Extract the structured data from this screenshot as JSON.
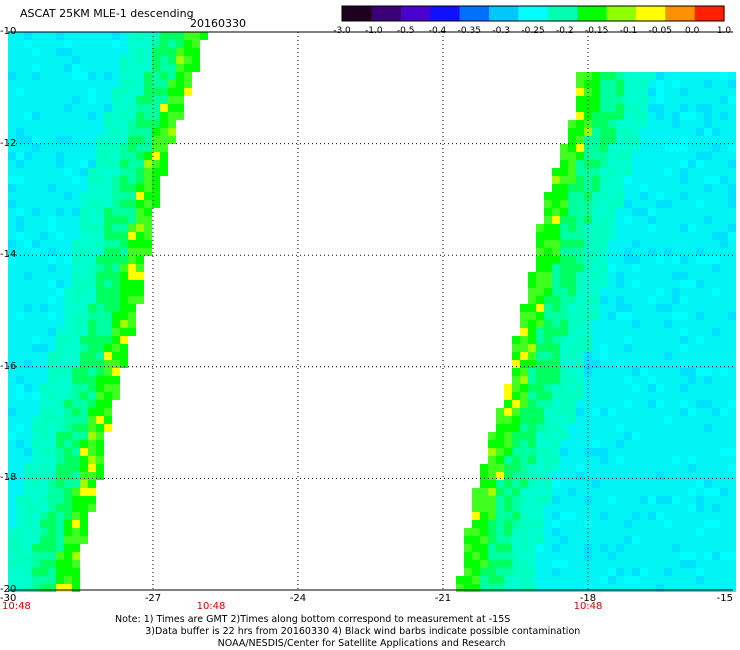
{
  "title": "ASCAT 25KM MLE-1 descending",
  "date": "20160330",
  "colorbar": {
    "labels": [
      "-3.0",
      "-1.0",
      "-0.5",
      "-0.4",
      "-0.35",
      "-0.3",
      "-0.25",
      "-0.2",
      "-0.15",
      "-0.1",
      "-0.05",
      "0.0",
      "1.0"
    ],
    "colors": [
      "#200020",
      "#3a0078",
      "#4a00d0",
      "#1010ff",
      "#0070ff",
      "#00c8ff",
      "#00ffff",
      "#00ffb0",
      "#00ff00",
      "#90ff00",
      "#ffff00",
      "#ff9000",
      "#ff2000"
    ]
  },
  "chart_data": {
    "type": "heatmap",
    "title": "ASCAT 25KM MLE-1 descending",
    "subtitle": "20160330",
    "x_axis": {
      "range": [
        -30,
        -15
      ],
      "ticks": [
        "-30",
        "-27",
        "-24",
        "-21",
        "-18",
        "-15"
      ]
    },
    "y_axis": {
      "range": [
        -20,
        -10
      ],
      "ticks": [
        "-10",
        "-12",
        "-14",
        "-16",
        "-18",
        "-20"
      ]
    },
    "grid": "dotted",
    "time_labels": [
      {
        "x": -30,
        "text": "10:48"
      },
      {
        "x": -25.8,
        "text": "10:48"
      },
      {
        "x": -18,
        "text": "10:48"
      }
    ],
    "swaths": [
      {
        "name": "west",
        "inner_edge": [
          [
            -10,
            -25.9
          ],
          [
            -11,
            -26.2
          ],
          [
            -12,
            -26.6
          ],
          [
            -13,
            -26.9
          ],
          [
            -14,
            -27.1
          ],
          [
            -15,
            -27.3
          ],
          [
            -16,
            -27.6
          ],
          [
            -17,
            -27.9
          ],
          [
            -18,
            -28.1
          ],
          [
            -19,
            -28.4
          ],
          [
            -20,
            -28.6
          ]
        ]
      },
      {
        "name": "east",
        "inner_edge": [
          [
            -10.7,
            -18.2
          ],
          [
            -11.5,
            -18.3
          ],
          [
            -12.5,
            -18.7
          ],
          [
            -13.5,
            -19.0
          ],
          [
            -14.5,
            -19.2
          ],
          [
            -15.5,
            -19.5
          ],
          [
            -16.5,
            -19.7
          ],
          [
            -17.5,
            -20.1
          ],
          [
            -18.5,
            -20.4
          ],
          [
            -19.5,
            -20.6
          ],
          [
            -20,
            -20.7
          ]
        ]
      }
    ]
  },
  "notes": {
    "line1": "Note: 1) Times are GMT 2)Times along bottom correspond to measurement at -15S",
    "line2": "          3)Data buffer is 22 hrs from 20160330 4) Black wind barbs indicate possible contamination",
    "line3": "                                  NOAA/NESDIS/Center for Satellite Applications and Research"
  }
}
